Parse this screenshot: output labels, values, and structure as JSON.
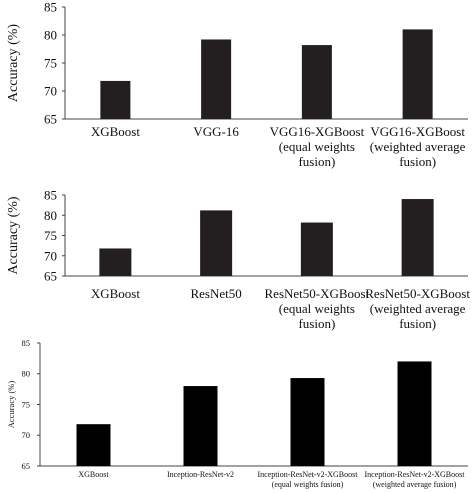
{
  "chart_data": [
    {
      "type": "bar",
      "ylabel": "Accuracy (%)",
      "ylim": [
        65,
        85
      ],
      "yticks": [
        65,
        70,
        75,
        80,
        85
      ],
      "grid": false,
      "bar_color": "#231f20",
      "categories": [
        [
          "XGBoost"
        ],
        [
          "VGG-16"
        ],
        [
          "VGG16-XGBoost",
          "(equal weights",
          "fusion)"
        ],
        [
          "VGG16-XGBoost",
          "(weighted average",
          "fusion)"
        ]
      ],
      "values": [
        71.8,
        79.2,
        78.2,
        81.0
      ]
    },
    {
      "type": "bar",
      "ylabel": "Accuracy (%)",
      "ylim": [
        65,
        85
      ],
      "yticks": [
        65,
        70,
        75,
        80,
        85
      ],
      "grid": false,
      "bar_color": "#231f20",
      "categories": [
        [
          "XGBoost"
        ],
        [
          "ResNet50"
        ],
        [
          "ResNet50-XGBoost",
          "(equal weights",
          "fusion)"
        ],
        [
          "ResNet50-XGBoost",
          "(weighted average",
          "fusion)"
        ]
      ],
      "values": [
        71.8,
        81.2,
        78.2,
        84.0
      ]
    },
    {
      "type": "bar",
      "ylabel": "Accuracy (%)",
      "ylim": [
        65,
        85
      ],
      "yticks": [
        65,
        70,
        75,
        80,
        85
      ],
      "grid": false,
      "bar_color": "#000000",
      "categories": [
        [
          "XGBoost"
        ],
        [
          "Inception-ResNet-v2"
        ],
        [
          "Inception-ResNet-v2-XGBoost",
          "(equal weights fusion)"
        ],
        [
          "Inception-ResNet-v2-XGBoost",
          "(weighted average fusion)"
        ]
      ],
      "values": [
        71.8,
        78.0,
        79.3,
        82.0
      ]
    }
  ]
}
